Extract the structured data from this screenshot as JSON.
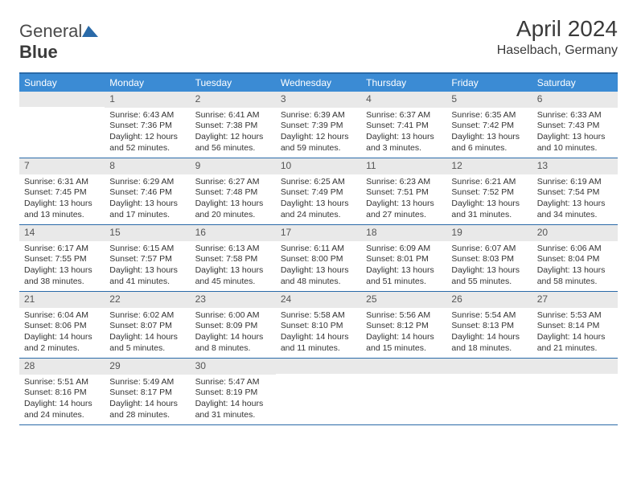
{
  "brand": {
    "part1": "General",
    "part2": "Blue"
  },
  "title": "April 2024",
  "location": "Haselbach, Germany",
  "colors": {
    "header_bg": "#3b8bd4",
    "border": "#2a6aa8",
    "daynum_bg": "#e9e9e9",
    "logo_tri": "#2a6aa8",
    "text": "#333333"
  },
  "day_names": [
    "Sunday",
    "Monday",
    "Tuesday",
    "Wednesday",
    "Thursday",
    "Friday",
    "Saturday"
  ],
  "weeks": [
    [
      {
        "n": "",
        "sr": "",
        "ss": "",
        "dl": ""
      },
      {
        "n": "1",
        "sr": "Sunrise: 6:43 AM",
        "ss": "Sunset: 7:36 PM",
        "dl": "Daylight: 12 hours and 52 minutes."
      },
      {
        "n": "2",
        "sr": "Sunrise: 6:41 AM",
        "ss": "Sunset: 7:38 PM",
        "dl": "Daylight: 12 hours and 56 minutes."
      },
      {
        "n": "3",
        "sr": "Sunrise: 6:39 AM",
        "ss": "Sunset: 7:39 PM",
        "dl": "Daylight: 12 hours and 59 minutes."
      },
      {
        "n": "4",
        "sr": "Sunrise: 6:37 AM",
        "ss": "Sunset: 7:41 PM",
        "dl": "Daylight: 13 hours and 3 minutes."
      },
      {
        "n": "5",
        "sr": "Sunrise: 6:35 AM",
        "ss": "Sunset: 7:42 PM",
        "dl": "Daylight: 13 hours and 6 minutes."
      },
      {
        "n": "6",
        "sr": "Sunrise: 6:33 AM",
        "ss": "Sunset: 7:43 PM",
        "dl": "Daylight: 13 hours and 10 minutes."
      }
    ],
    [
      {
        "n": "7",
        "sr": "Sunrise: 6:31 AM",
        "ss": "Sunset: 7:45 PM",
        "dl": "Daylight: 13 hours and 13 minutes."
      },
      {
        "n": "8",
        "sr": "Sunrise: 6:29 AM",
        "ss": "Sunset: 7:46 PM",
        "dl": "Daylight: 13 hours and 17 minutes."
      },
      {
        "n": "9",
        "sr": "Sunrise: 6:27 AM",
        "ss": "Sunset: 7:48 PM",
        "dl": "Daylight: 13 hours and 20 minutes."
      },
      {
        "n": "10",
        "sr": "Sunrise: 6:25 AM",
        "ss": "Sunset: 7:49 PM",
        "dl": "Daylight: 13 hours and 24 minutes."
      },
      {
        "n": "11",
        "sr": "Sunrise: 6:23 AM",
        "ss": "Sunset: 7:51 PM",
        "dl": "Daylight: 13 hours and 27 minutes."
      },
      {
        "n": "12",
        "sr": "Sunrise: 6:21 AM",
        "ss": "Sunset: 7:52 PM",
        "dl": "Daylight: 13 hours and 31 minutes."
      },
      {
        "n": "13",
        "sr": "Sunrise: 6:19 AM",
        "ss": "Sunset: 7:54 PM",
        "dl": "Daylight: 13 hours and 34 minutes."
      }
    ],
    [
      {
        "n": "14",
        "sr": "Sunrise: 6:17 AM",
        "ss": "Sunset: 7:55 PM",
        "dl": "Daylight: 13 hours and 38 minutes."
      },
      {
        "n": "15",
        "sr": "Sunrise: 6:15 AM",
        "ss": "Sunset: 7:57 PM",
        "dl": "Daylight: 13 hours and 41 minutes."
      },
      {
        "n": "16",
        "sr": "Sunrise: 6:13 AM",
        "ss": "Sunset: 7:58 PM",
        "dl": "Daylight: 13 hours and 45 minutes."
      },
      {
        "n": "17",
        "sr": "Sunrise: 6:11 AM",
        "ss": "Sunset: 8:00 PM",
        "dl": "Daylight: 13 hours and 48 minutes."
      },
      {
        "n": "18",
        "sr": "Sunrise: 6:09 AM",
        "ss": "Sunset: 8:01 PM",
        "dl": "Daylight: 13 hours and 51 minutes."
      },
      {
        "n": "19",
        "sr": "Sunrise: 6:07 AM",
        "ss": "Sunset: 8:03 PM",
        "dl": "Daylight: 13 hours and 55 minutes."
      },
      {
        "n": "20",
        "sr": "Sunrise: 6:06 AM",
        "ss": "Sunset: 8:04 PM",
        "dl": "Daylight: 13 hours and 58 minutes."
      }
    ],
    [
      {
        "n": "21",
        "sr": "Sunrise: 6:04 AM",
        "ss": "Sunset: 8:06 PM",
        "dl": "Daylight: 14 hours and 2 minutes."
      },
      {
        "n": "22",
        "sr": "Sunrise: 6:02 AM",
        "ss": "Sunset: 8:07 PM",
        "dl": "Daylight: 14 hours and 5 minutes."
      },
      {
        "n": "23",
        "sr": "Sunrise: 6:00 AM",
        "ss": "Sunset: 8:09 PM",
        "dl": "Daylight: 14 hours and 8 minutes."
      },
      {
        "n": "24",
        "sr": "Sunrise: 5:58 AM",
        "ss": "Sunset: 8:10 PM",
        "dl": "Daylight: 14 hours and 11 minutes."
      },
      {
        "n": "25",
        "sr": "Sunrise: 5:56 AM",
        "ss": "Sunset: 8:12 PM",
        "dl": "Daylight: 14 hours and 15 minutes."
      },
      {
        "n": "26",
        "sr": "Sunrise: 5:54 AM",
        "ss": "Sunset: 8:13 PM",
        "dl": "Daylight: 14 hours and 18 minutes."
      },
      {
        "n": "27",
        "sr": "Sunrise: 5:53 AM",
        "ss": "Sunset: 8:14 PM",
        "dl": "Daylight: 14 hours and 21 minutes."
      }
    ],
    [
      {
        "n": "28",
        "sr": "Sunrise: 5:51 AM",
        "ss": "Sunset: 8:16 PM",
        "dl": "Daylight: 14 hours and 24 minutes."
      },
      {
        "n": "29",
        "sr": "Sunrise: 5:49 AM",
        "ss": "Sunset: 8:17 PM",
        "dl": "Daylight: 14 hours and 28 minutes."
      },
      {
        "n": "30",
        "sr": "Sunrise: 5:47 AM",
        "ss": "Sunset: 8:19 PM",
        "dl": "Daylight: 14 hours and 31 minutes."
      },
      {
        "n": "",
        "sr": "",
        "ss": "",
        "dl": ""
      },
      {
        "n": "",
        "sr": "",
        "ss": "",
        "dl": ""
      },
      {
        "n": "",
        "sr": "",
        "ss": "",
        "dl": ""
      },
      {
        "n": "",
        "sr": "",
        "ss": "",
        "dl": ""
      }
    ]
  ]
}
